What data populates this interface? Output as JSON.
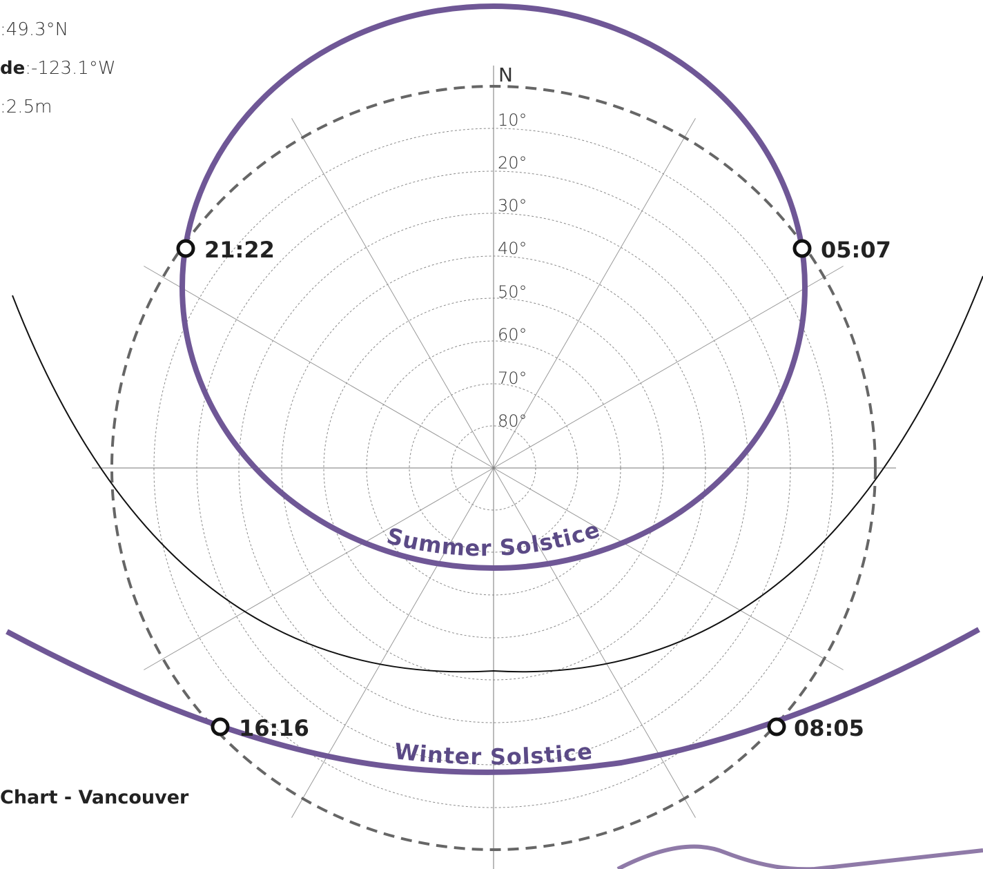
{
  "info": {
    "latitude_label": "",
    "latitude_value": ":49.3°N",
    "longitude_label": "de",
    "longitude_value": ":-123.1°W",
    "height_label": "",
    "height_value": ":2.5m"
  },
  "chart_title": "Chart - Vancouver",
  "north_label": "N",
  "altitude_rings": [
    "10°",
    "20°",
    "30°",
    "40°",
    "50°",
    "60°",
    "70°",
    "80°"
  ],
  "summer_solstice": {
    "label": "Summer Solstice",
    "sunrise": "05:07",
    "sunset": "21:22"
  },
  "winter_solstice": {
    "label": "Winter Solstice",
    "sunrise": "08:05",
    "sunset": "16:16"
  },
  "colors": {
    "solstice_path": "#6f5796",
    "horizon": "#555555",
    "grid": "#888888",
    "equinox": "#111111"
  }
}
